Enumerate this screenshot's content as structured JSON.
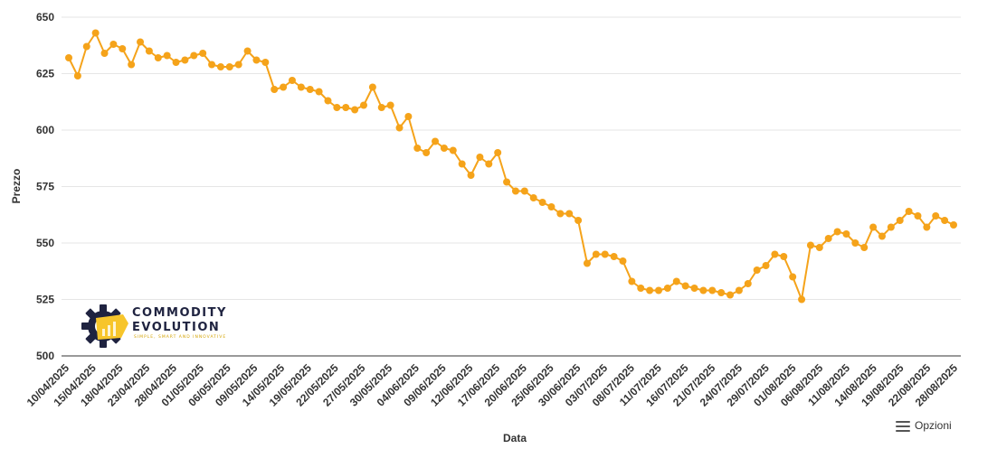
{
  "chart_data": {
    "type": "line",
    "title": "",
    "xlabel": "Data",
    "ylabel": "Prezzo",
    "ylim": [
      500,
      650
    ],
    "yticks": [
      500,
      525,
      550,
      575,
      600,
      625,
      650
    ],
    "grid": true,
    "legend": "none",
    "series_color": "#F5A31A",
    "x_tick_labels": [
      "10/04/2025",
      "15/04/2025",
      "18/04/2025",
      "23/04/2025",
      "28/04/2025",
      "01/05/2025",
      "06/05/2025",
      "09/05/2025",
      "14/05/2025",
      "19/05/2025",
      "22/05/2025",
      "27/05/2025",
      "30/05/2025",
      "04/06/2025",
      "09/06/2025",
      "12/06/2025",
      "17/06/2025",
      "20/06/2025",
      "25/06/2025",
      "30/06/2025",
      "03/07/2025",
      "08/07/2025",
      "11/07/2025",
      "16/07/2025",
      "21/07/2025",
      "24/07/2025",
      "29/07/2025",
      "01/08/2025",
      "06/08/2025",
      "11/08/2025",
      "14/08/2025",
      "19/08/2025",
      "22/08/2025",
      "28/08/2025"
    ],
    "series": [
      {
        "values": [
          632,
          624,
          637,
          643,
          634,
          638,
          636,
          629,
          639,
          635,
          632,
          633,
          630,
          631,
          633,
          634,
          629,
          628,
          628,
          629,
          635,
          631,
          630,
          618,
          619,
          622,
          619,
          618,
          617,
          613,
          610,
          610,
          609,
          611,
          619,
          610,
          611,
          601,
          606,
          592,
          590,
          595,
          592,
          591,
          585,
          580,
          588,
          585,
          590,
          577,
          573,
          573,
          570,
          568,
          566,
          563,
          563,
          560,
          541,
          545,
          545,
          544,
          542,
          533,
          530,
          529,
          529,
          530,
          533,
          531,
          530,
          529,
          529,
          528,
          527,
          529,
          532,
          538,
          540,
          545,
          544,
          535,
          525,
          549,
          548,
          552,
          555,
          554,
          550,
          548,
          557,
          553,
          557,
          560,
          564,
          562,
          557,
          562,
          560,
          558
        ]
      }
    ]
  },
  "logo": {
    "line1": "COMMODITY",
    "line2": "EVOLUTION",
    "tagline": "SIMPLE, SMART AND INNOVATIVE"
  },
  "toolbar": {
    "options_label": "Opzioni",
    "options_icon": "hamburger-menu-icon"
  }
}
